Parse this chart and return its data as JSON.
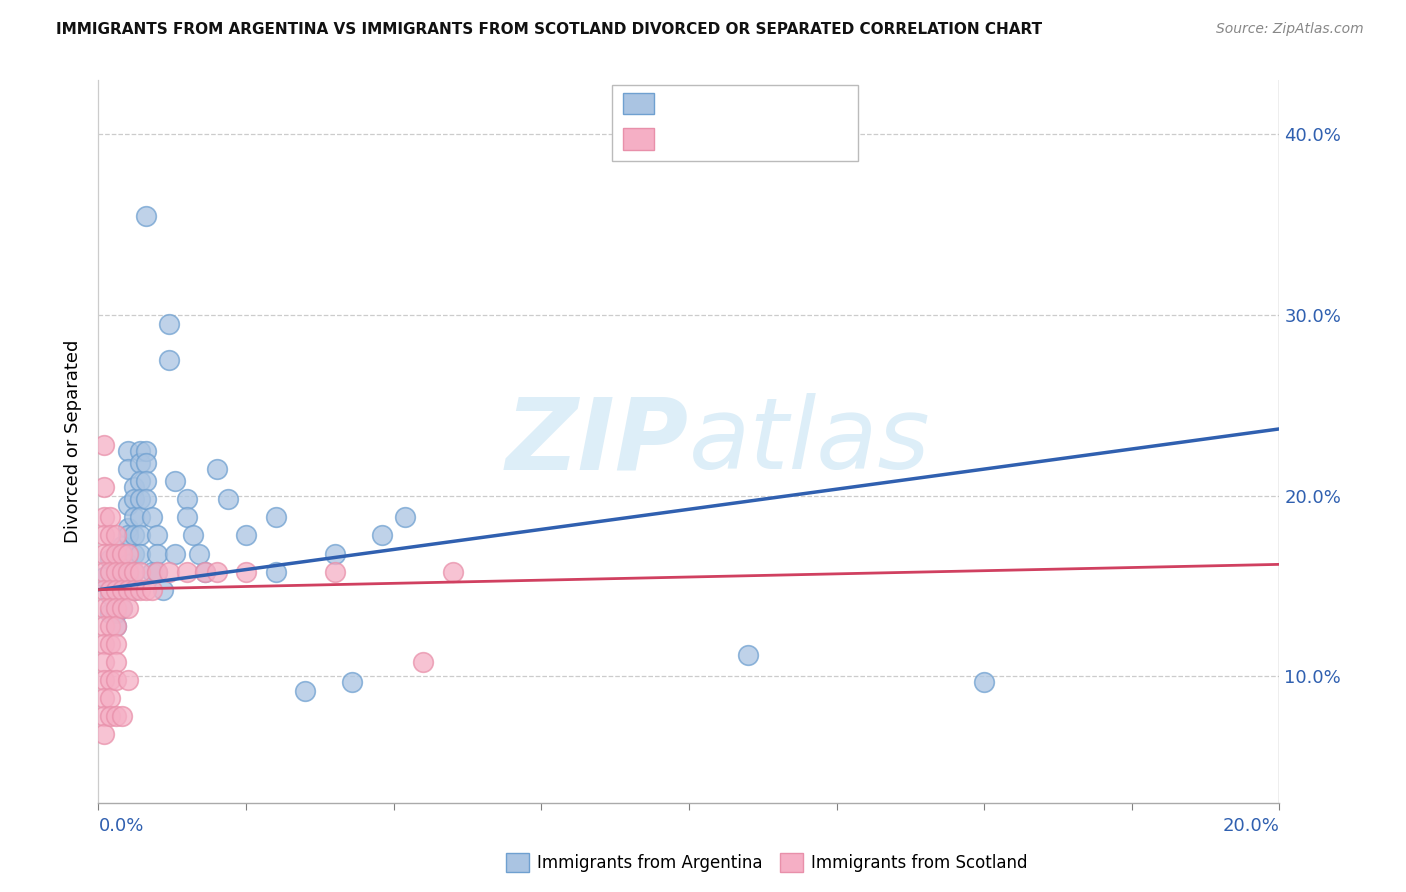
{
  "title": "IMMIGRANTS FROM ARGENTINA VS IMMIGRANTS FROM SCOTLAND DIVORCED OR SEPARATED CORRELATION CHART",
  "source": "Source: ZipAtlas.com",
  "ylabel": "Divorced or Separated",
  "xlim": [
    0.0,
    0.2
  ],
  "ylim": [
    0.03,
    0.43
  ],
  "ytick_vals": [
    0.1,
    0.2,
    0.3,
    0.4
  ],
  "ytick_labels": [
    "10.0%",
    "20.0%",
    "30.0%",
    "40.0%"
  ],
  "blue_fill": "#aac4e2",
  "pink_fill": "#f5afc5",
  "blue_edge": "#6fa0d0",
  "pink_edge": "#e890aa",
  "blue_line_color": "#3060b0",
  "pink_line_color": "#d04060",
  "watermark_color": "#ddeef8",
  "background_color": "#ffffff",
  "blue_line_x0": 0.0,
  "blue_line_y0": 0.148,
  "blue_line_x1": 0.2,
  "blue_line_y1": 0.237,
  "pink_line_x0": 0.0,
  "pink_line_y0": 0.148,
  "pink_line_x1": 0.2,
  "pink_line_y1": 0.162,
  "blue_scatter": [
    [
      0.001,
      0.155
    ],
    [
      0.002,
      0.165
    ],
    [
      0.002,
      0.145
    ],
    [
      0.002,
      0.135
    ],
    [
      0.003,
      0.16
    ],
    [
      0.003,
      0.148
    ],
    [
      0.003,
      0.135
    ],
    [
      0.003,
      0.128
    ],
    [
      0.004,
      0.172
    ],
    [
      0.004,
      0.168
    ],
    [
      0.004,
      0.158
    ],
    [
      0.004,
      0.148
    ],
    [
      0.004,
      0.138
    ],
    [
      0.005,
      0.225
    ],
    [
      0.005,
      0.215
    ],
    [
      0.005,
      0.195
    ],
    [
      0.005,
      0.182
    ],
    [
      0.005,
      0.178
    ],
    [
      0.005,
      0.162
    ],
    [
      0.005,
      0.156
    ],
    [
      0.005,
      0.148
    ],
    [
      0.006,
      0.205
    ],
    [
      0.006,
      0.198
    ],
    [
      0.006,
      0.188
    ],
    [
      0.006,
      0.178
    ],
    [
      0.006,
      0.168
    ],
    [
      0.006,
      0.158
    ],
    [
      0.006,
      0.148
    ],
    [
      0.007,
      0.225
    ],
    [
      0.007,
      0.218
    ],
    [
      0.007,
      0.208
    ],
    [
      0.007,
      0.198
    ],
    [
      0.007,
      0.188
    ],
    [
      0.007,
      0.178
    ],
    [
      0.007,
      0.168
    ],
    [
      0.008,
      0.355
    ],
    [
      0.008,
      0.225
    ],
    [
      0.008,
      0.218
    ],
    [
      0.008,
      0.208
    ],
    [
      0.008,
      0.198
    ],
    [
      0.009,
      0.188
    ],
    [
      0.009,
      0.158
    ],
    [
      0.01,
      0.178
    ],
    [
      0.01,
      0.168
    ],
    [
      0.01,
      0.158
    ],
    [
      0.011,
      0.148
    ],
    [
      0.012,
      0.295
    ],
    [
      0.012,
      0.275
    ],
    [
      0.013,
      0.208
    ],
    [
      0.013,
      0.168
    ],
    [
      0.015,
      0.198
    ],
    [
      0.015,
      0.188
    ],
    [
      0.016,
      0.178
    ],
    [
      0.017,
      0.168
    ],
    [
      0.018,
      0.158
    ],
    [
      0.02,
      0.215
    ],
    [
      0.022,
      0.198
    ],
    [
      0.025,
      0.178
    ],
    [
      0.03,
      0.188
    ],
    [
      0.03,
      0.158
    ],
    [
      0.035,
      0.092
    ],
    [
      0.04,
      0.168
    ],
    [
      0.043,
      0.097
    ],
    [
      0.048,
      0.178
    ],
    [
      0.052,
      0.188
    ],
    [
      0.11,
      0.112
    ],
    [
      0.15,
      0.097
    ]
  ],
  "pink_scatter": [
    [
      0.001,
      0.228
    ],
    [
      0.001,
      0.205
    ],
    [
      0.001,
      0.188
    ],
    [
      0.001,
      0.178
    ],
    [
      0.001,
      0.168
    ],
    [
      0.001,
      0.158
    ],
    [
      0.001,
      0.148
    ],
    [
      0.001,
      0.138
    ],
    [
      0.001,
      0.128
    ],
    [
      0.001,
      0.118
    ],
    [
      0.001,
      0.108
    ],
    [
      0.001,
      0.098
    ],
    [
      0.001,
      0.088
    ],
    [
      0.001,
      0.078
    ],
    [
      0.001,
      0.068
    ],
    [
      0.002,
      0.188
    ],
    [
      0.002,
      0.178
    ],
    [
      0.002,
      0.168
    ],
    [
      0.002,
      0.158
    ],
    [
      0.002,
      0.148
    ],
    [
      0.002,
      0.138
    ],
    [
      0.002,
      0.128
    ],
    [
      0.002,
      0.118
    ],
    [
      0.002,
      0.098
    ],
    [
      0.002,
      0.088
    ],
    [
      0.002,
      0.078
    ],
    [
      0.003,
      0.178
    ],
    [
      0.003,
      0.168
    ],
    [
      0.003,
      0.158
    ],
    [
      0.003,
      0.148
    ],
    [
      0.003,
      0.138
    ],
    [
      0.003,
      0.128
    ],
    [
      0.003,
      0.118
    ],
    [
      0.003,
      0.108
    ],
    [
      0.003,
      0.098
    ],
    [
      0.003,
      0.078
    ],
    [
      0.004,
      0.168
    ],
    [
      0.004,
      0.158
    ],
    [
      0.004,
      0.148
    ],
    [
      0.004,
      0.138
    ],
    [
      0.004,
      0.078
    ],
    [
      0.005,
      0.168
    ],
    [
      0.005,
      0.158
    ],
    [
      0.005,
      0.148
    ],
    [
      0.005,
      0.138
    ],
    [
      0.005,
      0.098
    ],
    [
      0.006,
      0.158
    ],
    [
      0.006,
      0.148
    ],
    [
      0.007,
      0.158
    ],
    [
      0.007,
      0.148
    ],
    [
      0.008,
      0.148
    ],
    [
      0.009,
      0.148
    ],
    [
      0.01,
      0.158
    ],
    [
      0.012,
      0.158
    ],
    [
      0.015,
      0.158
    ],
    [
      0.018,
      0.158
    ],
    [
      0.02,
      0.158
    ],
    [
      0.025,
      0.158
    ],
    [
      0.04,
      0.158
    ],
    [
      0.055,
      0.108
    ],
    [
      0.06,
      0.158
    ]
  ]
}
